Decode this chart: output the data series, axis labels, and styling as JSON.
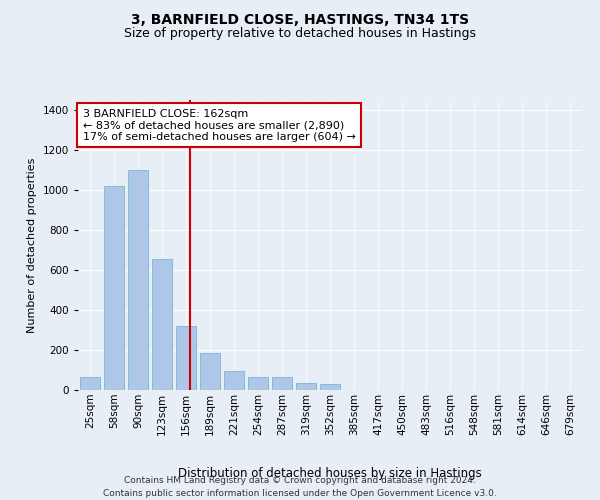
{
  "title1": "3, BARNFIELD CLOSE, HASTINGS, TN34 1TS",
  "title2": "Size of property relative to detached houses in Hastings",
  "xlabel": "Distribution of detached houses by size in Hastings",
  "ylabel": "Number of detached properties",
  "bin_labels": [
    "25sqm",
    "58sqm",
    "90sqm",
    "123sqm",
    "156sqm",
    "189sqm",
    "221sqm",
    "254sqm",
    "287sqm",
    "319sqm",
    "352sqm",
    "385sqm",
    "417sqm",
    "450sqm",
    "483sqm",
    "516sqm",
    "548sqm",
    "581sqm",
    "614sqm",
    "646sqm",
    "679sqm"
  ],
  "bar_heights": [
    65,
    1020,
    1100,
    655,
    320,
    185,
    95,
    65,
    65,
    35,
    30,
    0,
    0,
    0,
    0,
    0,
    0,
    0,
    0,
    0,
    0
  ],
  "bar_color": "#aec6e8",
  "bar_edgecolor": "#6aaed6",
  "vline_color": "#cc0000",
  "annotation_text": "3 BARNFIELD CLOSE: 162sqm\n← 83% of detached houses are smaller (2,890)\n17% of semi-detached houses are larger (604) →",
  "annotation_box_facecolor": "#ffffff",
  "annotation_box_edgecolor": "#cc0000",
  "ylim": [
    0,
    1450
  ],
  "yticks": [
    0,
    200,
    400,
    600,
    800,
    1000,
    1200,
    1400
  ],
  "bg_color": "#e8eef5",
  "footer": "Contains HM Land Registry data © Crown copyright and database right 2024.\nContains public sector information licensed under the Open Government Licence v3.0.",
  "title1_fontsize": 10,
  "title2_fontsize": 9,
  "xlabel_fontsize": 8.5,
  "ylabel_fontsize": 8,
  "tick_fontsize": 7.5,
  "annotation_fontsize": 8,
  "footer_fontsize": 6.5
}
